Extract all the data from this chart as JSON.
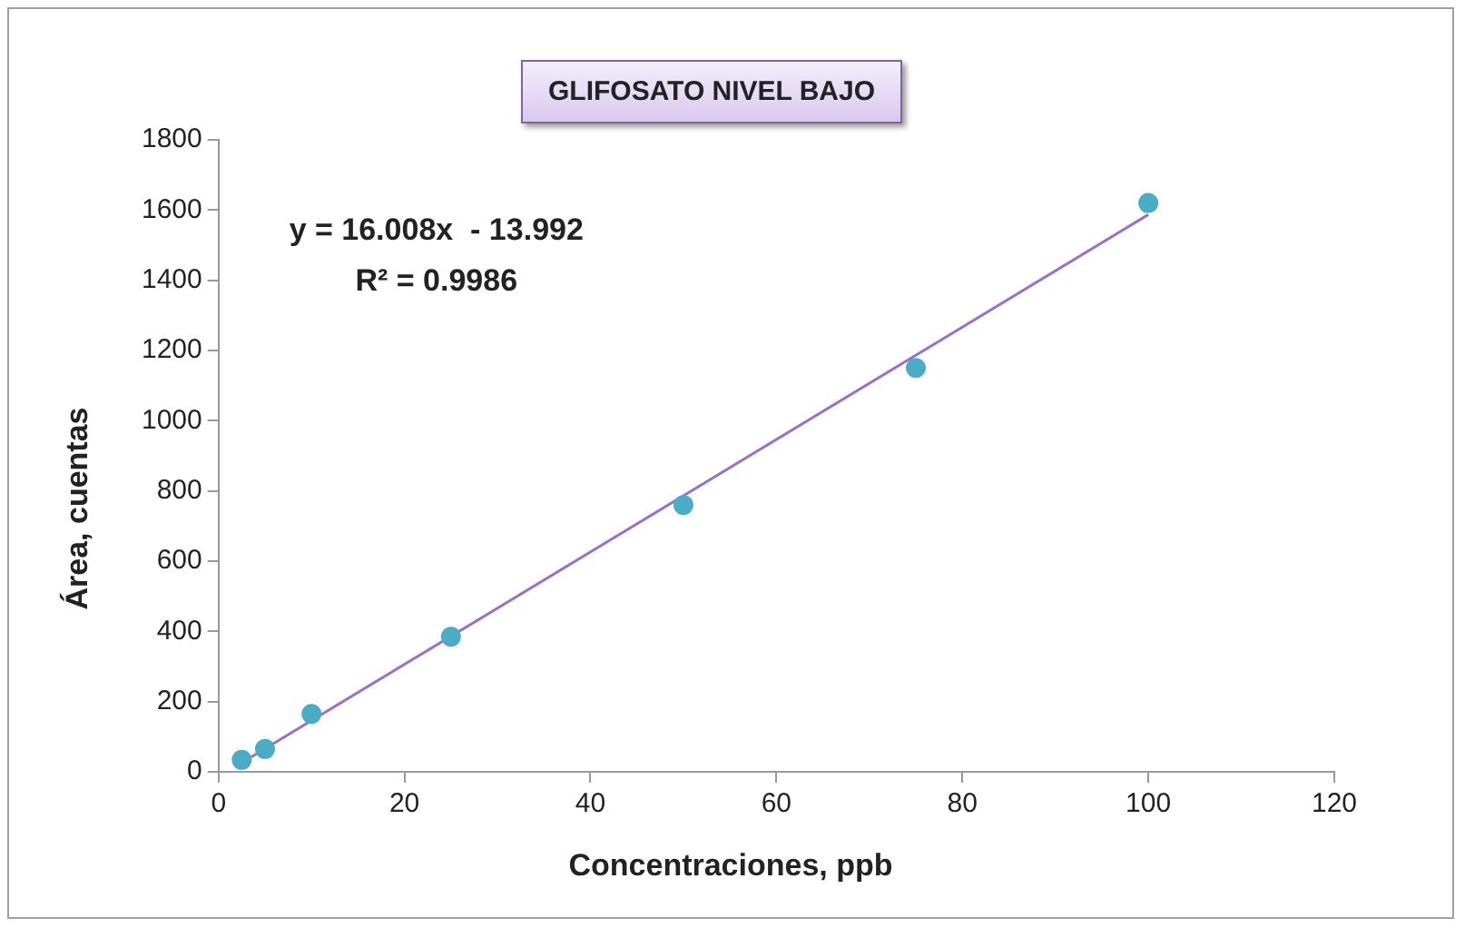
{
  "chart_data": {
    "type": "scatter",
    "title": "GLIFOSATO NIVEL BAJO",
    "xlabel": "Concentraciones, ppb",
    "ylabel": "Área, cuentas",
    "x": [
      2.5,
      5,
      10,
      25,
      50,
      75,
      100
    ],
    "series": [
      {
        "color": "#4bacc6",
        "marker": "circle",
        "values": [
          34,
          65,
          165,
          385,
          760,
          1150,
          1620
        ]
      },
      {
        "type": "line",
        "color": "#9b6fc8",
        "marker": "none",
        "x": [
          2.5,
          100
        ],
        "values": [
          26,
          1587
        ]
      }
    ],
    "xlim": [
      0,
      120
    ],
    "xticks": [
      0,
      20,
      40,
      60,
      80,
      100,
      120
    ],
    "ylim": [
      0,
      1800
    ],
    "yticks": [
      0,
      200,
      400,
      600,
      800,
      1000,
      1200,
      1400,
      1600,
      1800
    ],
    "annotations": [
      "y = 16.008x  - 13.992",
      "R² = 0.9986"
    ],
    "grid": false,
    "legend": false
  }
}
